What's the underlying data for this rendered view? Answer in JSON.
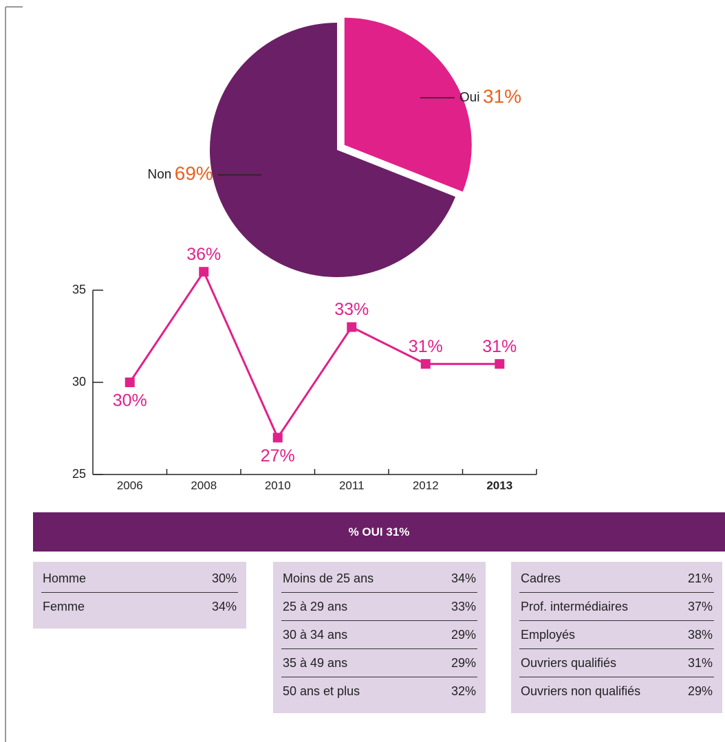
{
  "chart_data": [
    {
      "type": "pie",
      "categories": [
        "Oui",
        "Non"
      ],
      "values": [
        31,
        69
      ],
      "value_labels": [
        "31%",
        "69%"
      ],
      "colors": [
        "#e0218a",
        "#6b1f66"
      ],
      "exploded": "Oui"
    },
    {
      "type": "line",
      "categories": [
        "2006",
        "2008",
        "2010",
        "2011",
        "2012",
        "2013"
      ],
      "values": [
        30,
        36,
        27,
        33,
        31,
        31
      ],
      "value_labels": [
        "30%",
        "36%",
        "27%",
        "33%",
        "31%",
        "31%"
      ],
      "color": "#e0218a",
      "ylim": [
        25,
        35
      ],
      "yticks": [
        25,
        30,
        35
      ],
      "highlight": "2013"
    }
  ],
  "banner": "% OUI 31%",
  "tables": [
    {
      "rows": [
        [
          "Homme",
          "30%"
        ],
        [
          "Femme",
          "34%"
        ]
      ]
    },
    {
      "rows": [
        [
          "Moins de 25 ans",
          "34%"
        ],
        [
          "25 à 29 ans",
          "33%"
        ],
        [
          "30 à 34 ans",
          "29%"
        ],
        [
          "35 à 49 ans",
          "29%"
        ],
        [
          "50 ans et plus",
          "32%"
        ]
      ]
    },
    {
      "rows": [
        [
          "Cadres",
          "21%"
        ],
        [
          "Prof. intermédiaires",
          "37%"
        ],
        [
          "Employés",
          "38%"
        ],
        [
          "Ouvriers qualifiés",
          "31%"
        ],
        [
          "Ouvriers non qualifiés",
          "29%"
        ]
      ]
    }
  ]
}
